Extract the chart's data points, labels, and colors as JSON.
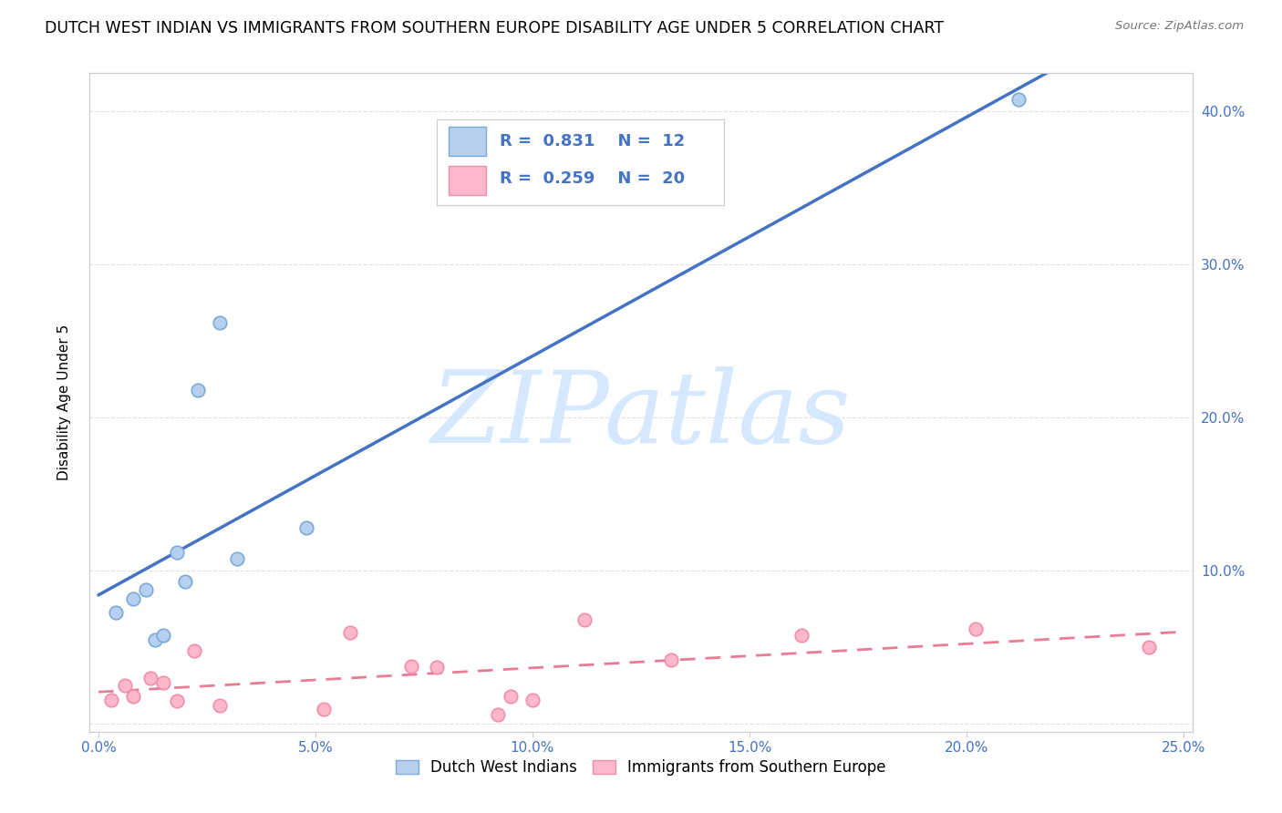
{
  "title": "DUTCH WEST INDIAN VS IMMIGRANTS FROM SOUTHERN EUROPE DISABILITY AGE UNDER 5 CORRELATION CHART",
  "source": "Source: ZipAtlas.com",
  "ylabel": "Disability Age Under 5",
  "xlim": [
    -0.002,
    0.252
  ],
  "ylim": [
    -0.005,
    0.425
  ],
  "xticks": [
    0.0,
    0.05,
    0.1,
    0.15,
    0.2,
    0.25
  ],
  "yticks_right": [
    0.0,
    0.1,
    0.2,
    0.3,
    0.4
  ],
  "blue_R": 0.831,
  "blue_N": 12,
  "pink_R": 0.259,
  "pink_N": 20,
  "blue_scatter_x": [
    0.004,
    0.008,
    0.011,
    0.013,
    0.015,
    0.018,
    0.02,
    0.023,
    0.028,
    0.032,
    0.048,
    0.212
  ],
  "blue_scatter_y": [
    0.073,
    0.082,
    0.088,
    0.055,
    0.058,
    0.112,
    0.093,
    0.218,
    0.262,
    0.108,
    0.128,
    0.408
  ],
  "pink_scatter_x": [
    0.003,
    0.006,
    0.008,
    0.012,
    0.015,
    0.018,
    0.022,
    0.028,
    0.052,
    0.058,
    0.072,
    0.078,
    0.092,
    0.095,
    0.1,
    0.112,
    0.132,
    0.162,
    0.202,
    0.242
  ],
  "pink_scatter_y": [
    0.016,
    0.025,
    0.018,
    0.03,
    0.027,
    0.015,
    0.048,
    0.012,
    0.01,
    0.06,
    0.038,
    0.037,
    0.006,
    0.018,
    0.016,
    0.068,
    0.042,
    0.058,
    0.062,
    0.05
  ],
  "blue_line_color": "#4472C4",
  "pink_line_color": "#E87B96",
  "blue_scatter_facecolor": "#B8D0F0",
  "blue_scatter_edgecolor": "#7BAAD8",
  "pink_scatter_facecolor": "#FFB8CB",
  "pink_scatter_edgecolor": "#F090A8",
  "watermark_text": "ZIPatlas",
  "watermark_color": "#D6E8FF",
  "background_color": "#FFFFFF",
  "grid_color": "#E0E0E0",
  "title_fontsize": 12.5,
  "axis_label_fontsize": 11,
  "tick_color": "#4472C4",
  "legend_r_n_color": "#4472C4",
  "scatter_size": 110
}
